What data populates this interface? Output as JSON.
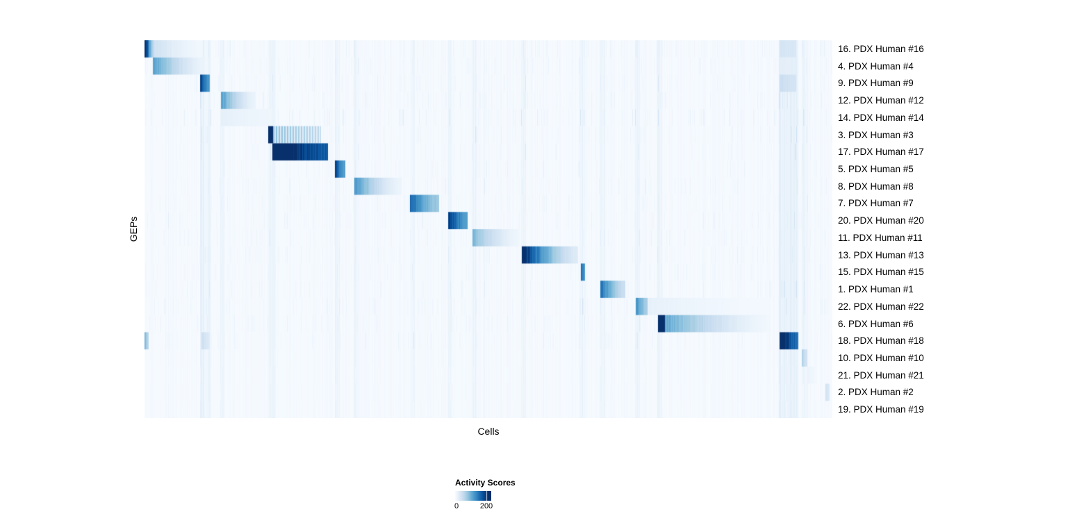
{
  "figure": {
    "background": "#ffffff"
  },
  "chart_data": {
    "type": "heatmap",
    "title": "",
    "xlabel": "Cells",
    "ylabel": "GEPs",
    "legend": {
      "title": "Activity Scores",
      "ticks": [
        "0",
        "200"
      ],
      "display_max": 230
    },
    "colormap": {
      "name": "Blues",
      "stops": [
        "#f7fbff",
        "#deebf7",
        "#c6dbef",
        "#9ecae1",
        "#6baed6",
        "#4292c6",
        "#2171b5",
        "#08519c",
        "#08306b"
      ],
      "domain": [
        0,
        200
      ]
    },
    "bands": [
      {
        "x0": 0.081,
        "x1": 0.096,
        "v": 10
      },
      {
        "x0": 0.111,
        "x1": 0.116,
        "v": 8
      },
      {
        "x0": 0.18,
        "x1": 0.19,
        "v": 8
      },
      {
        "x0": 0.277,
        "x1": 0.283,
        "v": 8
      },
      {
        "x0": 0.305,
        "x1": 0.311,
        "v": 8
      },
      {
        "x0": 0.386,
        "x1": 0.392,
        "v": 8
      },
      {
        "x0": 0.441,
        "x1": 0.447,
        "v": 8
      },
      {
        "x0": 0.477,
        "x1": 0.483,
        "v": 8
      },
      {
        "x0": 0.548,
        "x1": 0.554,
        "v": 8
      },
      {
        "x0": 0.634,
        "x1": 0.64,
        "v": 8
      },
      {
        "x0": 0.663,
        "x1": 0.669,
        "v": 8
      },
      {
        "x0": 0.714,
        "x1": 0.72,
        "v": 8
      },
      {
        "x0": 0.746,
        "x1": 0.752,
        "v": 8
      },
      {
        "x0": 0.923,
        "x1": 0.95,
        "v": 14
      },
      {
        "x0": 0.956,
        "x1": 0.964,
        "v": 8
      }
    ],
    "rows": [
      {
        "label": "16. PDX Human #16",
        "noise": 1.0,
        "segments": [
          {
            "x0": 0.0,
            "x1": 0.006,
            "v0": 220,
            "v1": 160
          },
          {
            "x0": 0.006,
            "x1": 0.013,
            "v0": 120,
            "v1": 60
          },
          {
            "x0": 0.013,
            "x1": 0.085,
            "v0": 40,
            "v1": 6
          },
          {
            "x0": 0.923,
            "x1": 0.947,
            "v0": 35,
            "v1": 30
          }
        ]
      },
      {
        "label": "4. PDX Human #4",
        "noise": 1.0,
        "segments": [
          {
            "x0": 0.012,
            "x1": 0.086,
            "v0": 115,
            "v1": 12
          },
          {
            "x0": 0.923,
            "x1": 0.947,
            "v0": 20,
            "v1": 18
          }
        ]
      },
      {
        "label": "9. PDX Human #9",
        "noise": 1.0,
        "segments": [
          {
            "x0": 0.081,
            "x1": 0.095,
            "v0": 190,
            "v1": 110
          },
          {
            "x0": 0.923,
            "x1": 0.947,
            "v0": 45,
            "v1": 35
          }
        ]
      },
      {
        "label": "12. PDX Human #12",
        "noise": 1.0,
        "segments": [
          {
            "x0": 0.111,
            "x1": 0.162,
            "v0": 115,
            "v1": 12
          }
        ]
      },
      {
        "label": "14. PDX Human #14",
        "noise": 1.4,
        "segments": [
          {
            "x0": 0.111,
            "x1": 0.185,
            "v0": 18,
            "v1": 8
          }
        ]
      },
      {
        "label": "3. PDX Human #3",
        "noise": 1.0,
        "segments": [
          {
            "x0": 0.18,
            "x1": 0.187,
            "v0": 230,
            "v1": 230
          },
          {
            "x0": 0.187,
            "x1": 0.257,
            "v0": 85,
            "v1": 55,
            "striped": true
          }
        ]
      },
      {
        "label": "17. PDX Human #17",
        "noise": 1.0,
        "segments": [
          {
            "x0": 0.186,
            "x1": 0.267,
            "v0": 245,
            "v1": 165
          }
        ]
      },
      {
        "label": "5. PDX Human #5",
        "noise": 1.0,
        "segments": [
          {
            "x0": 0.277,
            "x1": 0.292,
            "v0": 185,
            "v1": 115
          }
        ]
      },
      {
        "label": "8. PDX Human #8",
        "noise": 1.0,
        "segments": [
          {
            "x0": 0.305,
            "x1": 0.374,
            "v0": 120,
            "v1": 10
          }
        ]
      },
      {
        "label": "7. PDX Human #7",
        "noise": 1.0,
        "segments": [
          {
            "x0": 0.386,
            "x1": 0.428,
            "v0": 165,
            "v1": 75
          }
        ]
      },
      {
        "label": "20. PDX Human #20",
        "noise": 1.0,
        "segments": [
          {
            "x0": 0.441,
            "x1": 0.47,
            "v0": 195,
            "v1": 115
          }
        ]
      },
      {
        "label": "11. PDX Human #11",
        "noise": 1.0,
        "segments": [
          {
            "x0": 0.477,
            "x1": 0.545,
            "v0": 90,
            "v1": 8
          }
        ]
      },
      {
        "label": "13. PDX Human #13",
        "noise": 1.0,
        "segments": [
          {
            "x0": 0.548,
            "x1": 0.63,
            "v0": 215,
            "v1": 25
          }
        ]
      },
      {
        "label": "15. PDX Human #15",
        "noise": 1.0,
        "segments": [
          {
            "x0": 0.634,
            "x1": 0.64,
            "v0": 160,
            "v1": 120
          }
        ]
      },
      {
        "label": "1. PDX Human #1",
        "noise": 1.0,
        "segments": [
          {
            "x0": 0.663,
            "x1": 0.699,
            "v0": 155,
            "v1": 45
          }
        ]
      },
      {
        "label": "22. PDX Human #22",
        "noise": 1.0,
        "segments": [
          {
            "x0": 0.714,
            "x1": 0.731,
            "v0": 130,
            "v1": 70
          },
          {
            "x0": 0.731,
            "x1": 0.91,
            "v0": 16,
            "v1": 4
          }
        ]
      },
      {
        "label": "6. PDX Human #6",
        "noise": 1.0,
        "segments": [
          {
            "x0": 0.746,
            "x1": 0.757,
            "v0": 245,
            "v1": 205
          },
          {
            "x0": 0.757,
            "x1": 0.911,
            "v0": 105,
            "v1": 6
          }
        ]
      },
      {
        "label": "18. PDX Human #18",
        "noise": 1.0,
        "segments": [
          {
            "x0": 0.0,
            "x1": 0.006,
            "v0": 100,
            "v1": 50
          },
          {
            "x0": 0.083,
            "x1": 0.095,
            "v0": 45,
            "v1": 25
          },
          {
            "x0": 0.923,
            "x1": 0.95,
            "v0": 235,
            "v1": 150
          }
        ]
      },
      {
        "label": "10. PDX Human #10",
        "noise": 0.4,
        "segments": [
          {
            "x0": 0.956,
            "x1": 0.964,
            "v0": 70,
            "v1": 35
          }
        ]
      },
      {
        "label": "21. PDX Human #21",
        "noise": 0.35,
        "segments": [
          {
            "x0": 0.964,
            "x1": 0.975,
            "v0": 12,
            "v1": 6
          }
        ]
      },
      {
        "label": "2. PDX Human #2",
        "noise": 0.35,
        "segments": [
          {
            "x0": 0.99,
            "x1": 0.996,
            "v0": 40,
            "v1": 25
          }
        ]
      },
      {
        "label": "19. PDX Human #19",
        "noise": 0.35,
        "segments": []
      }
    ]
  }
}
